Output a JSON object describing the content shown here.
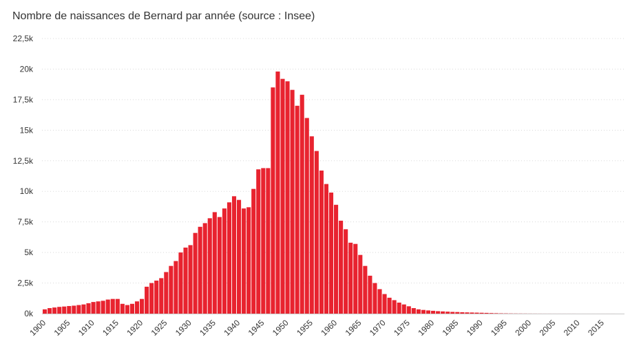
{
  "chart_data": {
    "type": "bar",
    "title": "Nombre de naissances de Bernard par année (source : Insee)",
    "xlabel": "",
    "ylabel": "",
    "ylim": [
      0,
      22500
    ],
    "grid": true,
    "bar_color": "#e8232f",
    "yticks": [
      {
        "value": 0,
        "label": "0k"
      },
      {
        "value": 2500,
        "label": "2,5k"
      },
      {
        "value": 5000,
        "label": "5k"
      },
      {
        "value": 7500,
        "label": "7,5k"
      },
      {
        "value": 10000,
        "label": "10k"
      },
      {
        "value": 12500,
        "label": "12,5k"
      },
      {
        "value": 15000,
        "label": "15k"
      },
      {
        "value": 17500,
        "label": "17,5k"
      },
      {
        "value": 20000,
        "label": "20k"
      },
      {
        "value": 22500,
        "label": "22,5k"
      }
    ],
    "xticks": [
      1900,
      1905,
      1910,
      1915,
      1920,
      1925,
      1930,
      1935,
      1940,
      1945,
      1950,
      1955,
      1960,
      1965,
      1970,
      1975,
      1980,
      1985,
      1990,
      1995,
      2000,
      2005,
      2010,
      2015
    ],
    "categories": [
      1900,
      1901,
      1902,
      1903,
      1904,
      1905,
      1906,
      1907,
      1908,
      1909,
      1910,
      1911,
      1912,
      1913,
      1914,
      1915,
      1916,
      1917,
      1918,
      1919,
      1920,
      1921,
      1922,
      1923,
      1924,
      1925,
      1926,
      1927,
      1928,
      1929,
      1930,
      1931,
      1932,
      1933,
      1934,
      1935,
      1936,
      1937,
      1938,
      1939,
      1940,
      1941,
      1942,
      1943,
      1944,
      1945,
      1946,
      1947,
      1948,
      1949,
      1950,
      1951,
      1952,
      1953,
      1954,
      1955,
      1956,
      1957,
      1958,
      1959,
      1960,
      1961,
      1962,
      1963,
      1964,
      1965,
      1966,
      1967,
      1968,
      1969,
      1970,
      1971,
      1972,
      1973,
      1974,
      1975,
      1976,
      1977,
      1978,
      1979,
      1980,
      1981,
      1982,
      1983,
      1984,
      1985,
      1986,
      1987,
      1988,
      1989,
      1990,
      1991,
      1992,
      1993,
      1994,
      1995,
      1996,
      1997,
      1998,
      1999,
      2000,
      2001,
      2002,
      2003,
      2004,
      2005,
      2006,
      2007,
      2008,
      2009,
      2010,
      2011,
      2012,
      2013,
      2014,
      2015,
      2016,
      2017
    ],
    "values": [
      350,
      450,
      500,
      550,
      580,
      620,
      650,
      700,
      750,
      850,
      950,
      1000,
      1050,
      1150,
      1200,
      1200,
      800,
      700,
      800,
      1000,
      1200,
      2200,
      2500,
      2700,
      2900,
      3400,
      3900,
      4300,
      5000,
      5400,
      5600,
      6600,
      7100,
      7400,
      7800,
      8300,
      7900,
      8600,
      9100,
      9600,
      9300,
      8600,
      8700,
      10200,
      11800,
      11900,
      11900,
      18500,
      19800,
      19200,
      19000,
      18300,
      17000,
      17900,
      16000,
      14500,
      13300,
      11700,
      10600,
      9900,
      8900,
      7600,
      6900,
      5800,
      5700,
      4800,
      3900,
      3100,
      2500,
      2000,
      1600,
      1300,
      1100,
      900,
      750,
      600,
      450,
      350,
      300,
      260,
      230,
      200,
      180,
      160,
      140,
      130,
      110,
      100,
      90,
      80,
      70,
      60,
      45,
      35,
      25,
      20,
      15,
      12,
      10,
      8,
      6,
      5,
      4,
      3,
      3,
      2,
      2,
      2,
      2,
      2,
      1,
      1,
      1,
      1,
      1,
      1,
      1,
      1
    ]
  }
}
